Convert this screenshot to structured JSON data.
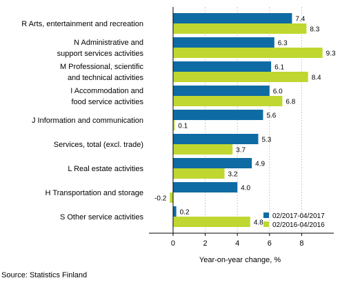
{
  "chart_data": {
    "type": "bar",
    "orientation": "horizontal",
    "categories": [
      [
        "R Arts, entertainment and recreation"
      ],
      [
        "N Administrative and",
        "support services activities"
      ],
      [
        "M Professional, scientific",
        "and technical activities"
      ],
      [
        "I Accommodation and",
        "food service activities"
      ],
      [
        "J Information and communication"
      ],
      [
        "Services, total (excl. trade)"
      ],
      [
        "L Real estate activities"
      ],
      [
        "H Transportation and storage"
      ],
      [
        "S Other service activities"
      ]
    ],
    "series": [
      {
        "name": "02/2017-04/2017",
        "color": "#0f6ba3",
        "values": [
          7.4,
          6.3,
          6.1,
          6.0,
          5.6,
          5.3,
          4.9,
          4.0,
          0.2
        ]
      },
      {
        "name": "02/2016-04/2016",
        "color": "#bfd730",
        "values": [
          8.3,
          9.3,
          8.4,
          6.8,
          0.1,
          3.7,
          3.2,
          -0.2,
          4.8
        ]
      }
    ],
    "value_labels": [
      [
        "7.4",
        "6.3",
        "6.1",
        "6.0",
        "5.6",
        "5.3",
        "4.9",
        "4.0",
        "0.2"
      ],
      [
        "8.3",
        "9.3",
        "8.4",
        "6.8",
        "0.1",
        "3.7",
        "3.2",
        "-0.2",
        "4.8"
      ]
    ],
    "xlim": [
      -1.5,
      10.0
    ],
    "xticks": [
      0,
      2,
      4,
      6,
      8
    ],
    "xtick_labels": [
      "0",
      "2",
      "4",
      "6",
      "8"
    ],
    "xlabel": "Year-on-year change, %",
    "ylabel": "",
    "title": "",
    "grid": "vertical",
    "legend_position": "bottom-right"
  },
  "source": "Source: Statistics Finland"
}
